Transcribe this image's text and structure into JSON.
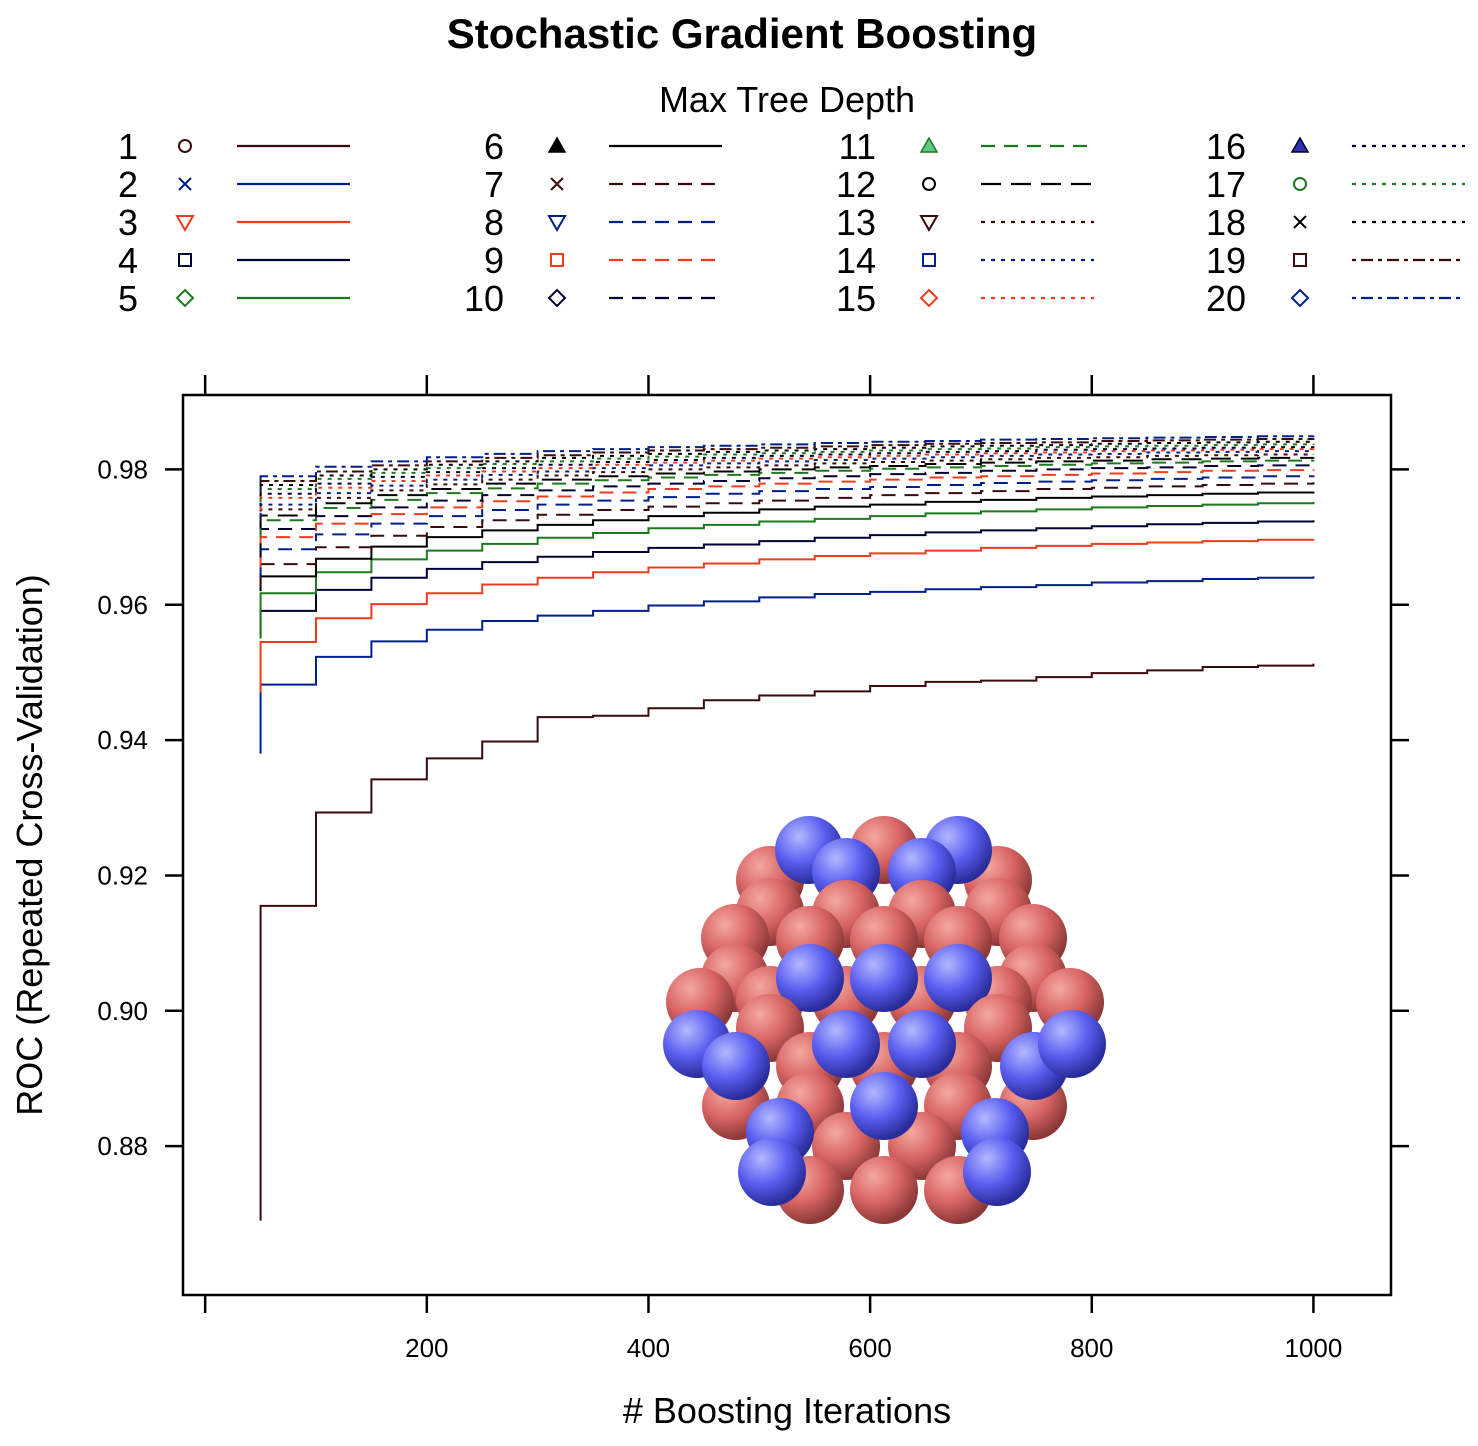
{
  "chart_data": {
    "type": "line",
    "title": "Stochastic Gradient Boosting",
    "xlabel": "# Boosting Iterations",
    "ylabel": "ROC (Repeated Cross-Validation)",
    "legend_title": "Max Tree Depth",
    "legend_position": "top",
    "xlim": [
      -20,
      1070
    ],
    "ylim": [
      0.858,
      0.991
    ],
    "x_ticks": [
      200,
      400,
      600,
      800,
      1000
    ],
    "x_tick_labels": [
      "200",
      "400",
      "600",
      "800",
      "1000"
    ],
    "y_ticks": [
      0.88,
      0.9,
      0.92,
      0.94,
      0.96,
      0.98
    ],
    "y_tick_labels": [
      "0.88",
      "0.90",
      "0.92",
      "0.94",
      "0.96",
      "0.98"
    ],
    "grid": false,
    "step_plot": true,
    "x": [
      50,
      100,
      150,
      200,
      250,
      300,
      350,
      400,
      450,
      500,
      550,
      600,
      650,
      700,
      750,
      800,
      850,
      900,
      950,
      1000
    ],
    "series": [
      {
        "name": "1",
        "color": "#3b0a0a",
        "dash": "solid",
        "symbol": "circle",
        "values": [
          0.9155,
          0.9293,
          0.9342,
          0.9373,
          0.9398,
          0.9434,
          0.9436,
          0.9447,
          0.9459,
          0.9466,
          0.9472,
          0.948,
          0.9486,
          0.9488,
          0.9493,
          0.9499,
          0.9503,
          0.9508,
          0.951,
          0.9513
        ]
      },
      {
        "name": "2",
        "color": "#00208a",
        "dash": "solid",
        "symbol": "cross",
        "values": [
          0.9482,
          0.9523,
          0.9546,
          0.9563,
          0.9576,
          0.9584,
          0.9591,
          0.9599,
          0.9605,
          0.9611,
          0.9616,
          0.9619,
          0.9623,
          0.9626,
          0.9629,
          0.9633,
          0.9635,
          0.9638,
          0.964,
          0.9642
        ]
      },
      {
        "name": "3",
        "color": "#f03c1e",
        "dash": "solid",
        "symbol": "triangle-down",
        "values": [
          0.9545,
          0.958,
          0.9601,
          0.9617,
          0.963,
          0.964,
          0.9648,
          0.9655,
          0.9661,
          0.9667,
          0.9672,
          0.9676,
          0.968,
          0.9684,
          0.9687,
          0.969,
          0.9692,
          0.9694,
          0.9696,
          0.9697
        ]
      },
      {
        "name": "4",
        "color": "#000033",
        "dash": "solid",
        "symbol": "square",
        "values": [
          0.9591,
          0.9622,
          0.964,
          0.9653,
          0.9663,
          0.9671,
          0.9678,
          0.9684,
          0.9689,
          0.9694,
          0.9699,
          0.9703,
          0.9707,
          0.971,
          0.9713,
          0.9716,
          0.9719,
          0.9721,
          0.9723,
          0.9725
        ]
      },
      {
        "name": "5",
        "color": "#1e7a1e",
        "dash": "solid",
        "symbol": "diamond",
        "values": [
          0.9617,
          0.9648,
          0.9667,
          0.968,
          0.969,
          0.9699,
          0.9706,
          0.9713,
          0.9718,
          0.9723,
          0.9727,
          0.9731,
          0.9735,
          0.9738,
          0.9741,
          0.9744,
          0.9746,
          0.9748,
          0.975,
          0.9752
        ]
      },
      {
        "name": "6",
        "color": "#000000",
        "dash": "solid",
        "symbol": "triangle-filled",
        "values": [
          0.9642,
          0.9668,
          0.9686,
          0.97,
          0.971,
          0.9718,
          0.9725,
          0.9731,
          0.9736,
          0.9741,
          0.9745,
          0.9748,
          0.9752,
          0.9755,
          0.9758,
          0.976,
          0.9762,
          0.9764,
          0.9766,
          0.9767
        ]
      },
      {
        "name": "7",
        "color": "#3b0a0a",
        "dash": "dashed",
        "symbol": "cross",
        "values": [
          0.966,
          0.9685,
          0.9702,
          0.9715,
          0.9725,
          0.9733,
          0.974,
          0.9745,
          0.975,
          0.9754,
          0.9758,
          0.9762,
          0.9765,
          0.9768,
          0.9771,
          0.9773,
          0.9775,
          0.9777,
          0.9779,
          0.9781
        ]
      },
      {
        "name": "8",
        "color": "#00208a",
        "dash": "dashed",
        "symbol": "triangle-down",
        "values": [
          0.9682,
          0.9704,
          0.972,
          0.9731,
          0.974,
          0.9748,
          0.9754,
          0.9759,
          0.9764,
          0.9768,
          0.9771,
          0.9774,
          0.9777,
          0.978,
          0.9782,
          0.9784,
          0.9786,
          0.9788,
          0.979,
          0.9791
        ]
      },
      {
        "name": "9",
        "color": "#f03c1e",
        "dash": "dashed",
        "symbol": "square",
        "values": [
          0.97,
          0.972,
          0.9734,
          0.9744,
          0.9753,
          0.976,
          0.9766,
          0.9771,
          0.9775,
          0.9779,
          0.9782,
          0.9785,
          0.9788,
          0.979,
          0.9792,
          0.9794,
          0.9796,
          0.9798,
          0.9799,
          0.98
        ]
      },
      {
        "name": "10",
        "color": "#000033",
        "dash": "dashed",
        "symbol": "diamond",
        "values": [
          0.9712,
          0.9731,
          0.9744,
          0.9754,
          0.9762,
          0.9769,
          0.9775,
          0.9779,
          0.9783,
          0.9787,
          0.979,
          0.9793,
          0.9795,
          0.9798,
          0.98,
          0.9802,
          0.9803,
          0.9805,
          0.9806,
          0.9807
        ]
      },
      {
        "name": "11",
        "color": "#1e7a1e",
        "dash": "dashed",
        "symbol": "triangle-green",
        "values": [
          0.9725,
          0.9743,
          0.9755,
          0.9765,
          0.9772,
          0.9779,
          0.9784,
          0.9788,
          0.9792,
          0.9795,
          0.9798,
          0.9801,
          0.9803,
          0.9805,
          0.9807,
          0.9809,
          0.981,
          0.9812,
          0.9813,
          0.9814
        ]
      },
      {
        "name": "12",
        "color": "#000000",
        "dash": "longdash",
        "symbol": "circle",
        "values": [
          0.9732,
          0.975,
          0.9762,
          0.9771,
          0.9779,
          0.9785,
          0.979,
          0.9794,
          0.9797,
          0.98,
          0.9803,
          0.9805,
          0.9808,
          0.981,
          0.9812,
          0.9813,
          0.9815,
          0.9816,
          0.9817,
          0.9818
        ]
      },
      {
        "name": "13",
        "color": "#3b0a0a",
        "dash": "dotted",
        "symbol": "triangle-down",
        "values": [
          0.9741,
          0.9758,
          0.9769,
          0.9778,
          0.9785,
          0.9791,
          0.9796,
          0.98,
          0.9803,
          0.9806,
          0.9809,
          0.9811,
          0.9813,
          0.9815,
          0.9817,
          0.9818,
          0.982,
          0.9821,
          0.9822,
          0.9823
        ]
      },
      {
        "name": "14",
        "color": "#00208a",
        "dash": "dotted",
        "symbol": "square",
        "values": [
          0.9748,
          0.9765,
          0.9776,
          0.9785,
          0.9792,
          0.9797,
          0.9802,
          0.9806,
          0.9809,
          0.9812,
          0.9814,
          0.9816,
          0.9818,
          0.982,
          0.9822,
          0.9823,
          0.9825,
          0.9826,
          0.9827,
          0.9828
        ]
      },
      {
        "name": "15",
        "color": "#f03c1e",
        "dash": "dotted",
        "symbol": "diamond",
        "values": [
          0.9758,
          0.9773,
          0.9783,
          0.9791,
          0.9797,
          0.9802,
          0.9807,
          0.981,
          0.9813,
          0.9816,
          0.9818,
          0.982,
          0.9822,
          0.9824,
          0.9825,
          0.9827,
          0.9828,
          0.9829,
          0.983,
          0.9831
        ]
      },
      {
        "name": "16",
        "color": "#000033",
        "dash": "dotted",
        "symbol": "triangle-blue",
        "values": [
          0.9764,
          0.9779,
          0.9789,
          0.9796,
          0.9802,
          0.9807,
          0.9811,
          0.9814,
          0.9817,
          0.982,
          0.9822,
          0.9824,
          0.9826,
          0.9827,
          0.9829,
          0.983,
          0.9831,
          0.9832,
          0.9833,
          0.9834
        ]
      },
      {
        "name": "17",
        "color": "#1e7a1e",
        "dash": "dotted",
        "symbol": "circle",
        "values": [
          0.9771,
          0.9786,
          0.9795,
          0.9802,
          0.9808,
          0.9812,
          0.9816,
          0.9819,
          0.9822,
          0.9824,
          0.9826,
          0.9828,
          0.983,
          0.9831,
          0.9833,
          0.9834,
          0.9835,
          0.9836,
          0.9837,
          0.9838
        ]
      },
      {
        "name": "18",
        "color": "#000000",
        "dash": "dotted",
        "symbol": "cross",
        "values": [
          0.9777,
          0.9791,
          0.98,
          0.9807,
          0.9812,
          0.9817,
          0.982,
          0.9823,
          0.9826,
          0.9828,
          0.983,
          0.9832,
          0.9834,
          0.9835,
          0.9836,
          0.9838,
          0.9839,
          0.984,
          0.9841,
          0.9842
        ]
      },
      {
        "name": "19",
        "color": "#3b0a0a",
        "dash": "dotdash",
        "symbol": "square",
        "values": [
          0.9783,
          0.9797,
          0.9806,
          0.9812,
          0.9817,
          0.9821,
          0.9825,
          0.9828,
          0.983,
          0.9832,
          0.9834,
          0.9836,
          0.9838,
          0.9839,
          0.984,
          0.9842,
          0.9843,
          0.9844,
          0.9845,
          0.9846
        ]
      },
      {
        "name": "20",
        "color": "#00208a",
        "dash": "dotdash",
        "symbol": "diamond",
        "values": [
          0.979,
          0.9804,
          0.9812,
          0.9818,
          0.9823,
          0.9827,
          0.983,
          0.9833,
          0.9835,
          0.9837,
          0.9839,
          0.9841,
          0.9842,
          0.9844,
          0.9845,
          0.9846,
          0.9847,
          0.9848,
          0.9849,
          0.985
        ]
      }
    ],
    "start_values": [
      0.869,
      0.938,
      0.947,
      0.9555,
      0.955,
      0.962,
      0.9626,
      0.964,
      0.9655,
      0.967,
      0.97,
      0.9713,
      0.9723,
      0.973,
      0.974,
      0.9745,
      0.9752,
      0.976,
      0.9765,
      0.977
    ]
  },
  "inset_image": {
    "description_name": "hexagonal-sphere-cluster",
    "colors": {
      "red_sphere": "#d86464",
      "blue_sphere": "#5a5ef0"
    }
  }
}
